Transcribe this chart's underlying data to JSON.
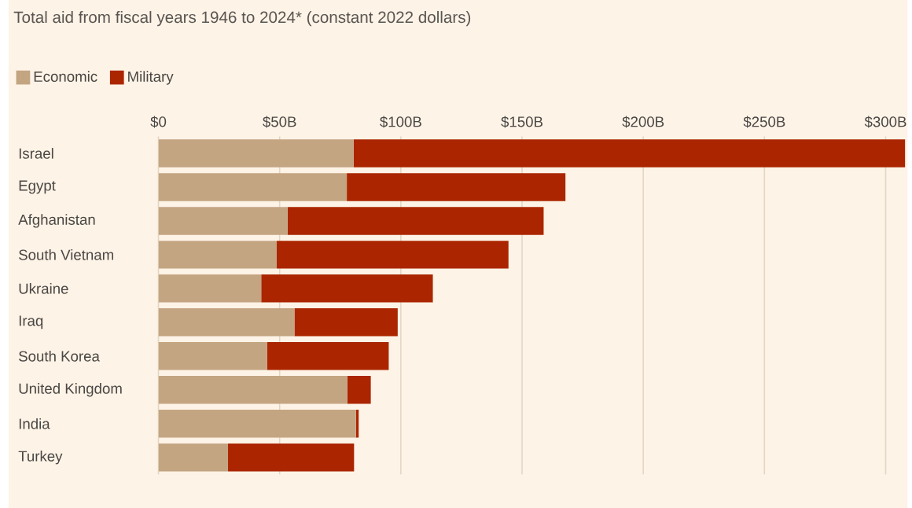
{
  "chart_data": {
    "type": "bar",
    "orientation": "horizontal",
    "stacked": true,
    "title": "Total aid from fiscal years 1946 to 2024* (constant 2022 dollars)",
    "categories": [
      "Israel",
      "Egypt",
      "Afghanistan",
      "South Vietnam",
      "Ukraine",
      "Iraq",
      "South Korea",
      "United Kingdom",
      "India",
      "Turkey"
    ],
    "series": [
      {
        "name": "Economic",
        "color": "#c4a582",
        "values": [
          80.5,
          77.7,
          53.3,
          48.8,
          42.4,
          56.1,
          44.8,
          77.9,
          81.5,
          28.7
        ]
      },
      {
        "name": "Military",
        "color": "#ab2600",
        "values": [
          227.5,
          90.2,
          105.6,
          95.6,
          70.8,
          42.6,
          50.2,
          9.7,
          1.1,
          52.0
        ]
      }
    ],
    "xlim": [
      0,
      309
    ],
    "xticks": [
      {
        "value": 0,
        "label": "$0"
      },
      {
        "value": 50,
        "label": "$50B"
      },
      {
        "value": 100,
        "label": "$100B"
      },
      {
        "value": 150,
        "label": "$150B"
      },
      {
        "value": 200,
        "label": "$200B"
      },
      {
        "value": 250,
        "label": "$250B"
      },
      {
        "value": 300,
        "label": "$300B"
      }
    ],
    "grid": "x",
    "legend": "top left"
  }
}
